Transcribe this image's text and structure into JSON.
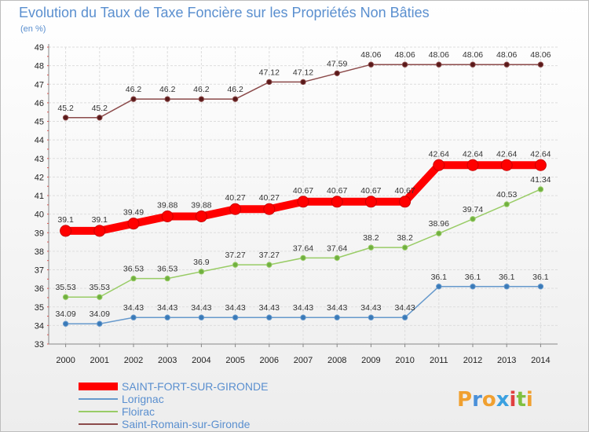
{
  "chart_data": {
    "type": "line",
    "title": "Evolution du Taux de Taxe Foncière sur les Propriétés Non Bâties",
    "subtitle": "(en %)",
    "x": [
      "2000",
      "2001",
      "2002",
      "2003",
      "2004",
      "2005",
      "2006",
      "2007",
      "2008",
      "2009",
      "2010",
      "2011",
      "2012",
      "2013",
      "2014"
    ],
    "ylim": [
      33,
      49
    ],
    "yticks": [
      33,
      34,
      35,
      36,
      37,
      38,
      39,
      40,
      41,
      42,
      43,
      44,
      45,
      46,
      47,
      48,
      49
    ],
    "grid": true,
    "legend_position": "bottom-left",
    "series": [
      {
        "name": "SAINT-FORT-SUR-GIRONDE",
        "color": "#ff0000",
        "values": [
          39.1,
          39.1,
          39.49,
          39.88,
          39.88,
          40.27,
          40.27,
          40.67,
          40.67,
          40.67,
          40.67,
          42.64,
          42.64,
          42.64,
          42.64
        ],
        "labels": [
          "39.1",
          "39.1",
          "39.49",
          "39.88",
          "39.88",
          "40.27",
          "40.27",
          "40.67",
          "40.67",
          "40.67",
          "40.67",
          "42.64",
          "42.64",
          "42.64",
          "42.64"
        ]
      },
      {
        "name": "Lorignac",
        "color": "#6699cc",
        "values": [
          34.09,
          34.09,
          34.43,
          34.43,
          34.43,
          34.43,
          34.43,
          34.43,
          34.43,
          34.43,
          34.43,
          36.1,
          36.1,
          36.1,
          36.1
        ],
        "labels": [
          "34.09",
          "34.09",
          "34.43",
          "34.43",
          "34.43",
          "34.43",
          "34.43",
          "34.43",
          "34.43",
          "34.43",
          "34.43",
          "36.1",
          "36.1",
          "36.1",
          "36.1"
        ]
      },
      {
        "name": "Floirac",
        "color": "#99cc66",
        "values": [
          35.53,
          35.53,
          36.53,
          36.53,
          36.9,
          37.27,
          37.27,
          37.64,
          37.64,
          38.2,
          38.2,
          38.96,
          39.74,
          40.53,
          41.34
        ],
        "labels": [
          "35.53",
          "35.53",
          "36.53",
          "36.53",
          "36.9",
          "37.27",
          "37.27",
          "37.64",
          "37.64",
          "38.2",
          "38.2",
          "38.96",
          "39.74",
          "40.53",
          "41.34"
        ]
      },
      {
        "name": "Saint-Romain-sur-Gironde",
        "color": "#8b4a4a",
        "values": [
          45.2,
          45.2,
          46.2,
          46.2,
          46.2,
          46.2,
          47.12,
          47.12,
          47.59,
          48.06,
          48.06,
          48.06,
          48.06,
          48.06,
          48.06
        ],
        "labels": [
          "45.2",
          "45.2",
          "46.2",
          "46.2",
          "46.2",
          "46.2",
          "47.12",
          "47.12",
          "47.59",
          "48.06",
          "48.06",
          "48.06",
          "48.06",
          "48.06",
          "48.06"
        ]
      }
    ]
  },
  "logo": {
    "text": "Proxiti"
  }
}
